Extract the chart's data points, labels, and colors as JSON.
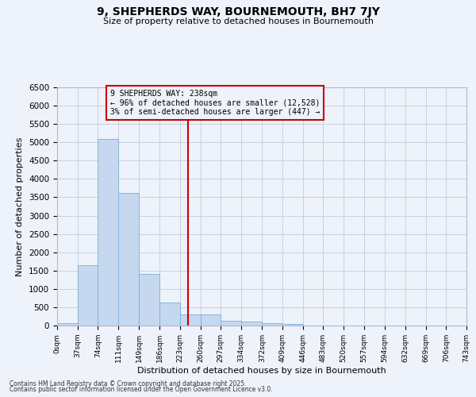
{
  "title": "9, SHEPHERDS WAY, BOURNEMOUTH, BH7 7JY",
  "subtitle": "Size of property relative to detached houses in Bournemouth",
  "xlabel": "Distribution of detached houses by size in Bournemouth",
  "ylabel": "Number of detached properties",
  "bar_color": "#c5d8f0",
  "bar_edge_color": "#7bafd4",
  "background_color": "#eef2fa",
  "grid_color": "#c8d0e0",
  "annotation_line_color": "#cc0000",
  "annotation_box_color": "#cc0000",
  "annotation_text": "9 SHEPHERDS WAY: 238sqm\n← 96% of detached houses are smaller (12,528)\n3% of semi-detached houses are larger (447) →",
  "property_size": 238,
  "footer1": "Contains HM Land Registry data © Crown copyright and database right 2025.",
  "footer2": "Contains public sector information licensed under the Open Government Licence v3.0.",
  "bin_labels": [
    "0sqm",
    "37sqm",
    "74sqm",
    "111sqm",
    "149sqm",
    "186sqm",
    "223sqm",
    "260sqm",
    "297sqm",
    "334sqm",
    "372sqm",
    "409sqm",
    "446sqm",
    "483sqm",
    "520sqm",
    "557sqm",
    "594sqm",
    "632sqm",
    "669sqm",
    "706sqm",
    "743sqm"
  ],
  "bin_edges": [
    0,
    37,
    74,
    111,
    149,
    186,
    223,
    260,
    297,
    334,
    372,
    409,
    446,
    483,
    520,
    557,
    594,
    632,
    669,
    706,
    743
  ],
  "bar_heights": [
    70,
    1650,
    5100,
    3620,
    1400,
    620,
    310,
    310,
    140,
    110,
    70,
    40,
    10,
    0,
    0,
    0,
    0,
    0,
    0,
    0
  ],
  "ylim": [
    0,
    6500
  ],
  "yticks": [
    0,
    500,
    1000,
    1500,
    2000,
    2500,
    3000,
    3500,
    4000,
    4500,
    5000,
    5500,
    6000,
    6500
  ]
}
